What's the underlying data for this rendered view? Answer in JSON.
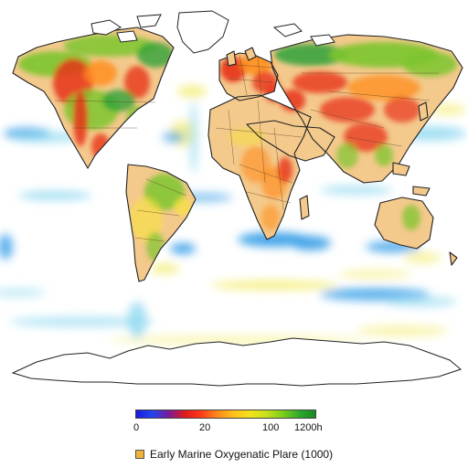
{
  "colorbar": {
    "stops": [
      "#1a1adc",
      "#2244ee",
      "#7a1a9a",
      "#e01a1a",
      "#ff3b1a",
      "#ff8a1a",
      "#ffc21a",
      "#f2e21a",
      "#c8e01a",
      "#7ccf1a",
      "#2eaa2a",
      "#178a22"
    ],
    "tick_labels": [
      "0",
      "20",
      "100",
      "1200h"
    ]
  },
  "legend": {
    "swatch_color": "#f2b23a",
    "label": "Early Marine Oxygenatic Plare (1000)"
  },
  "palette": {
    "land_base": "#f4c98c",
    "land_light": "#f8ddb0",
    "high": "#e8321a",
    "mid": "#ff8c1a",
    "yellow": "#f6e23a",
    "green": "#7cc52e",
    "deep_green": "#2fa23a",
    "ocean_blue": "#3aa0e8",
    "ocean_cyan": "#8ed8f0",
    "ocean_yellow": "#f4ee7a"
  }
}
